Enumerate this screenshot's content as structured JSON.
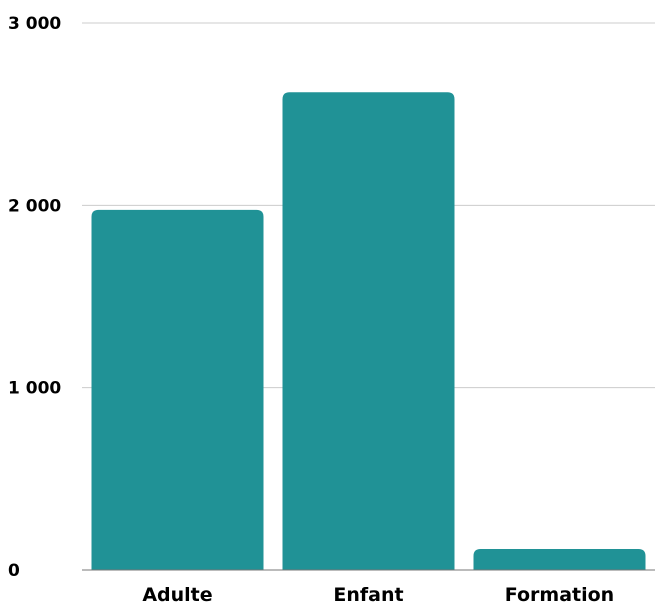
{
  "chart_data": {
    "type": "bar",
    "categories": [
      "Adulte",
      "Enfant",
      "Formation"
    ],
    "values": [
      1975,
      2620,
      115
    ],
    "ylim": [
      0,
      3000
    ],
    "yticks": [
      {
        "value": 0,
        "label": "0"
      },
      {
        "value": 1000,
        "label": "1 000"
      },
      {
        "value": 2000,
        "label": "2 000"
      },
      {
        "value": 3000,
        "label": "3 000"
      }
    ],
    "grid": true,
    "legend": "none",
    "colors": {
      "bar": "#209296",
      "grid": "#cccccc",
      "axis": "#777777"
    }
  }
}
